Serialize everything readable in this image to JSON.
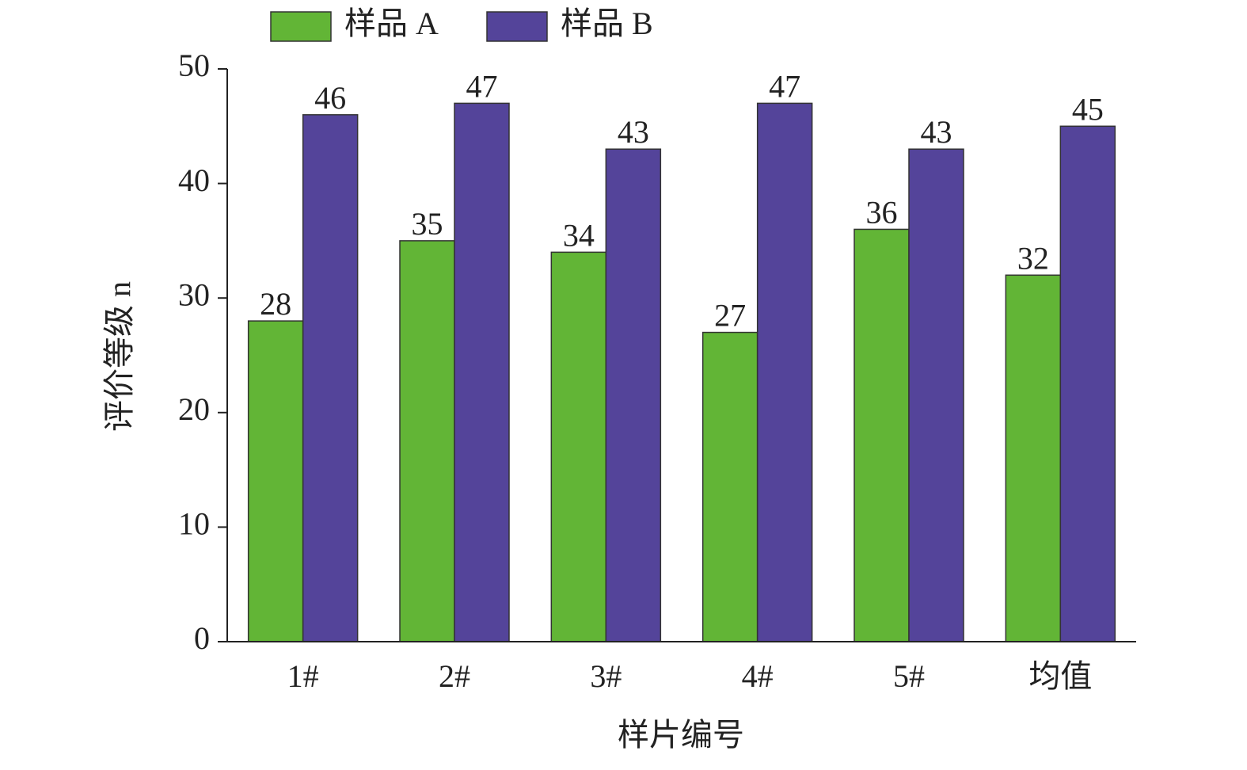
{
  "chart_data": {
    "type": "bar",
    "x_label": "样片编号",
    "y_label": "评价等级 n",
    "categories": [
      "1#",
      "2#",
      "3#",
      "4#",
      "5#",
      "均值"
    ],
    "series": [
      {
        "name": "样品 A",
        "color": "#62b536",
        "values": [
          28,
          35,
          34,
          27,
          36,
          32
        ]
      },
      {
        "name": "样品 B",
        "color": "#54449a",
        "values": [
          46,
          47,
          43,
          47,
          43,
          45
        ]
      }
    ],
    "ylim": [
      0,
      50
    ],
    "yticks": [
      0,
      10,
      20,
      30,
      40,
      50
    ]
  }
}
